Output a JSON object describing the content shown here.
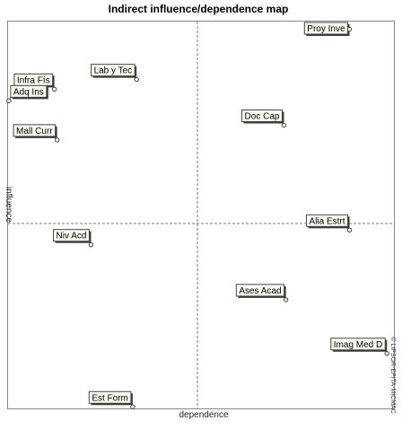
{
  "chart_data": {
    "type": "scatter",
    "title": "Indirect influence/dependence map",
    "xlabel": "dependence",
    "ylabel": "influence",
    "xlim": [
      0,
      100
    ],
    "ylim": [
      0,
      100
    ],
    "grid": false,
    "watermark": "© LIPSOR-EPITA-MICMAC",
    "points": [
      {
        "label": "Proy Inve",
        "x": 88.5,
        "y": 98.0
      },
      {
        "label": "Lab y Tec",
        "x": 33.3,
        "y": 85.0
      },
      {
        "label": "Infra Fís",
        "x": 12.0,
        "y": 82.5
      },
      {
        "label": "Adq Ins",
        "x": 0.2,
        "y": 79.5
      },
      {
        "label": "Doc Cap",
        "x": 71.5,
        "y": 73.2
      },
      {
        "label": "Mall Curr",
        "x": 12.7,
        "y": 69.4
      },
      {
        "label": "Alia Estrt",
        "x": 88.5,
        "y": 46.1
      },
      {
        "label": "Niv Acd",
        "x": 21.5,
        "y": 42.3
      },
      {
        "label": "Ases Acad",
        "x": 72.0,
        "y": 28.1
      },
      {
        "label": "Imag Med D",
        "x": 98.2,
        "y": 14.2
      },
      {
        "label": "Est Form",
        "x": 32.3,
        "y": 0.4
      }
    ]
  }
}
